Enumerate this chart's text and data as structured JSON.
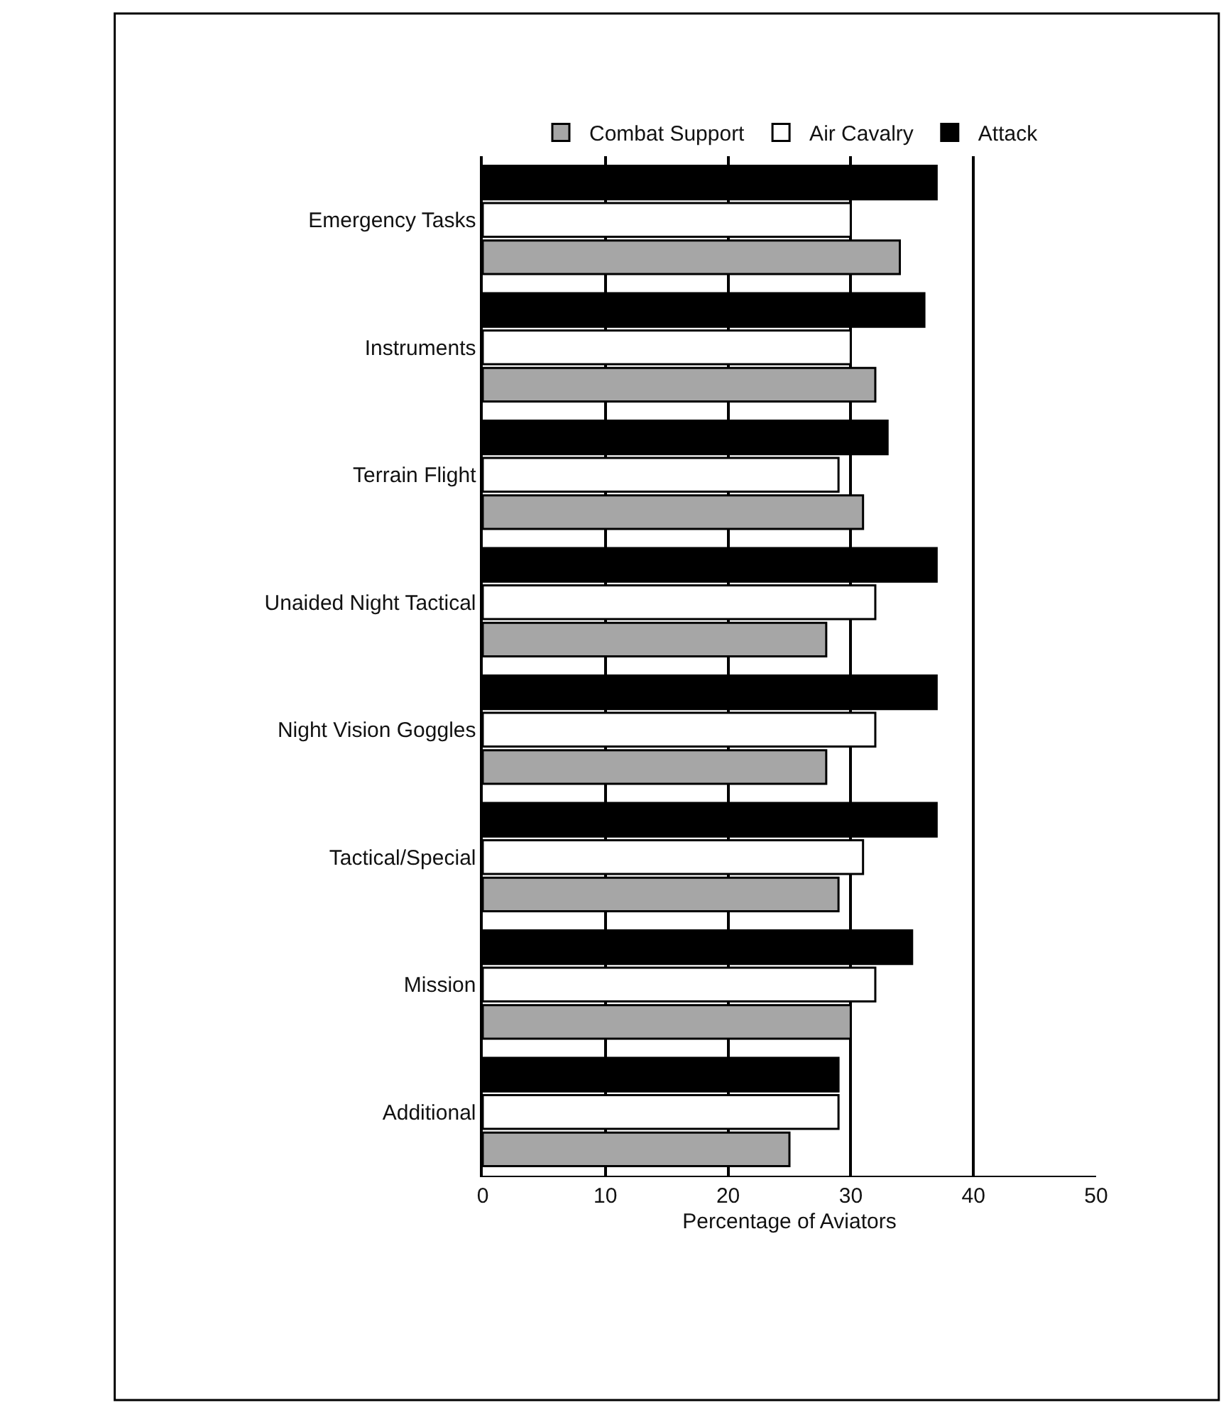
{
  "chart_data": {
    "type": "bar",
    "orientation": "horizontal",
    "xlabel": "Percentage of Aviators",
    "categories": [
      "Emergency Tasks",
      "Instruments",
      "Terrain Flight",
      "Unaided Night Tactical",
      "Night Vision Goggles",
      "Tactical/Special",
      "Mission",
      "Additional"
    ],
    "series": [
      {
        "name": "Attack",
        "color": "#000000",
        "values": [
          37,
          36,
          33,
          37,
          37,
          37,
          35,
          29
        ]
      },
      {
        "name": "Air Cavalry",
        "color": "#ffffff",
        "values": [
          30,
          30,
          29,
          32,
          32,
          31,
          32,
          29
        ]
      },
      {
        "name": "Combat Support",
        "color": "#a6a6a6",
        "values": [
          34,
          32,
          31,
          28,
          28,
          29,
          30,
          25
        ]
      }
    ],
    "xlim": [
      0,
      50
    ],
    "xticks": [
      0,
      10,
      20,
      30,
      40,
      50
    ],
    "grid": "x",
    "legend": "top"
  }
}
